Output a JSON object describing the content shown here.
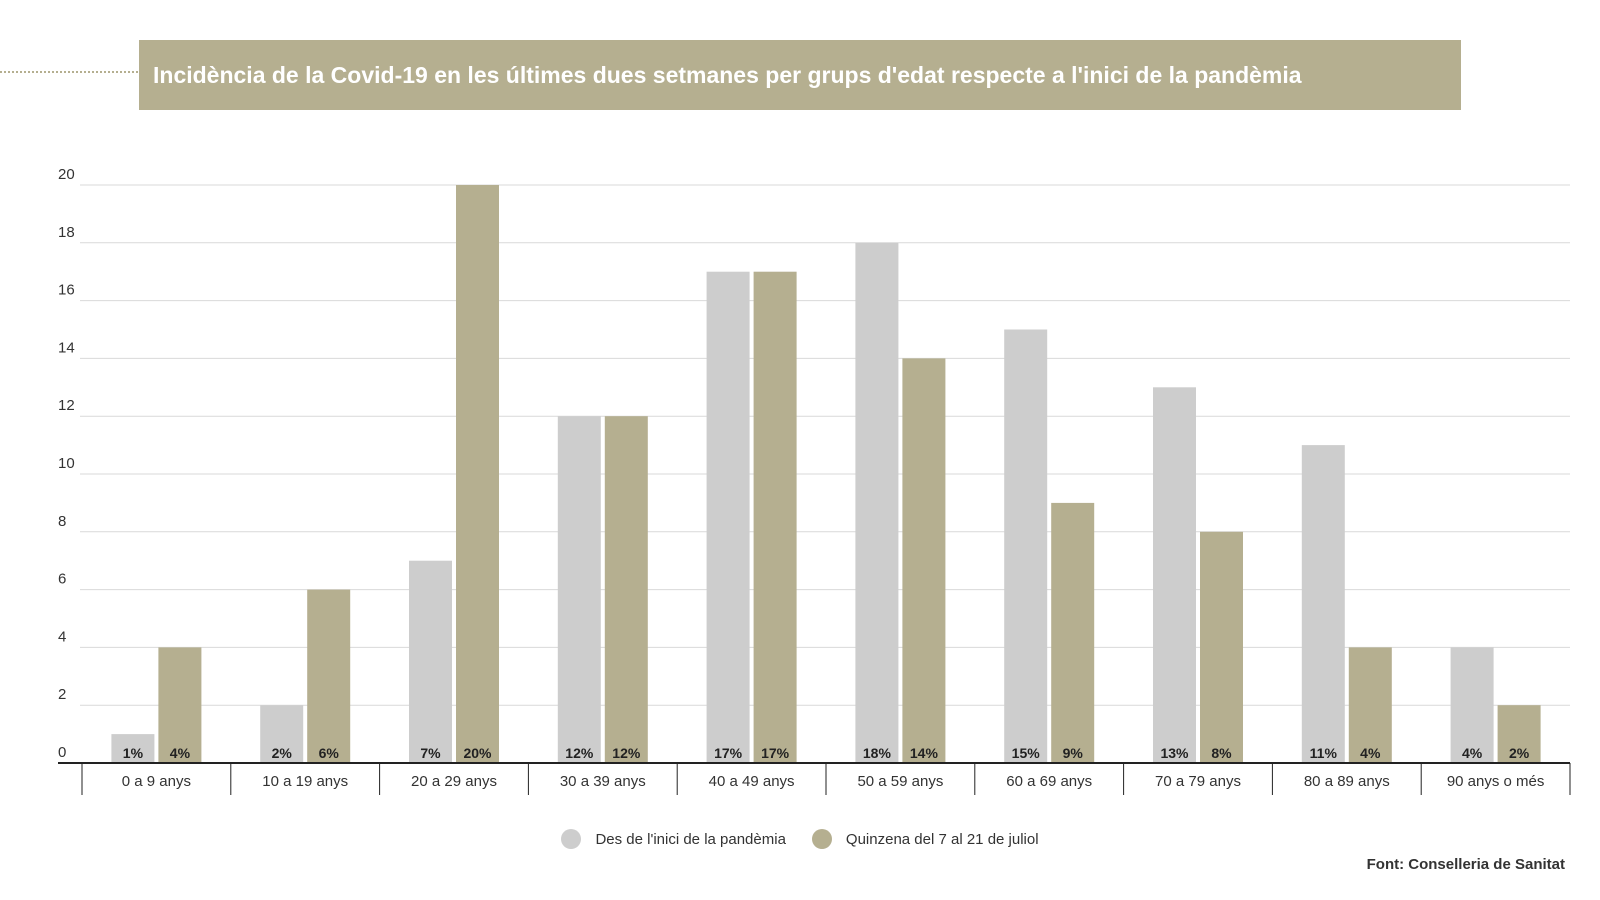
{
  "colors": {
    "series_1": "#cdcdcd",
    "series_2": "#b5af90",
    "title_bg": "#b5af90",
    "grid": "#d9d9d9"
  },
  "chart_data": {
    "type": "bar",
    "title": "Incidència de la Covid-19 en les últimes dues setmanes per grups d'edat respecte a l'inici de la pandèmia",
    "categories": [
      "0 a 9 anys",
      "10 a 19 anys",
      "20 a 29 anys",
      "30 a 39 anys",
      "40 a 49 anys",
      "50 a 59 anys",
      "60 a 69 anys",
      "70 a 79 anys",
      "80 a 89 anys",
      "90 anys o més"
    ],
    "series": [
      {
        "name": "Des de l'inici de la pandèmia",
        "values": [
          1,
          2,
          7,
          12,
          17,
          18,
          15,
          13,
          11,
          4
        ],
        "labels": [
          "1%",
          "2%",
          "7%",
          "12%",
          "17%",
          "18%",
          "15%",
          "13%",
          "11%",
          "4%"
        ]
      },
      {
        "name": "Quinzena del 7 al 21 de juliol",
        "values": [
          4,
          6,
          20,
          12,
          17,
          14,
          9,
          8,
          4,
          2
        ],
        "labels": [
          "4%",
          "6%",
          "20%",
          "12%",
          "17%",
          "14%",
          "9%",
          "8%",
          "4%",
          "2%"
        ]
      }
    ],
    "yticks": [
      0,
      2,
      4,
      6,
      8,
      10,
      12,
      14,
      16,
      18,
      20
    ],
    "ylim": [
      0,
      20
    ],
    "xlabel": "",
    "ylabel": "",
    "grid": true,
    "legend_position": "bottom-center"
  },
  "source": "Font: Conselleria de Sanitat"
}
